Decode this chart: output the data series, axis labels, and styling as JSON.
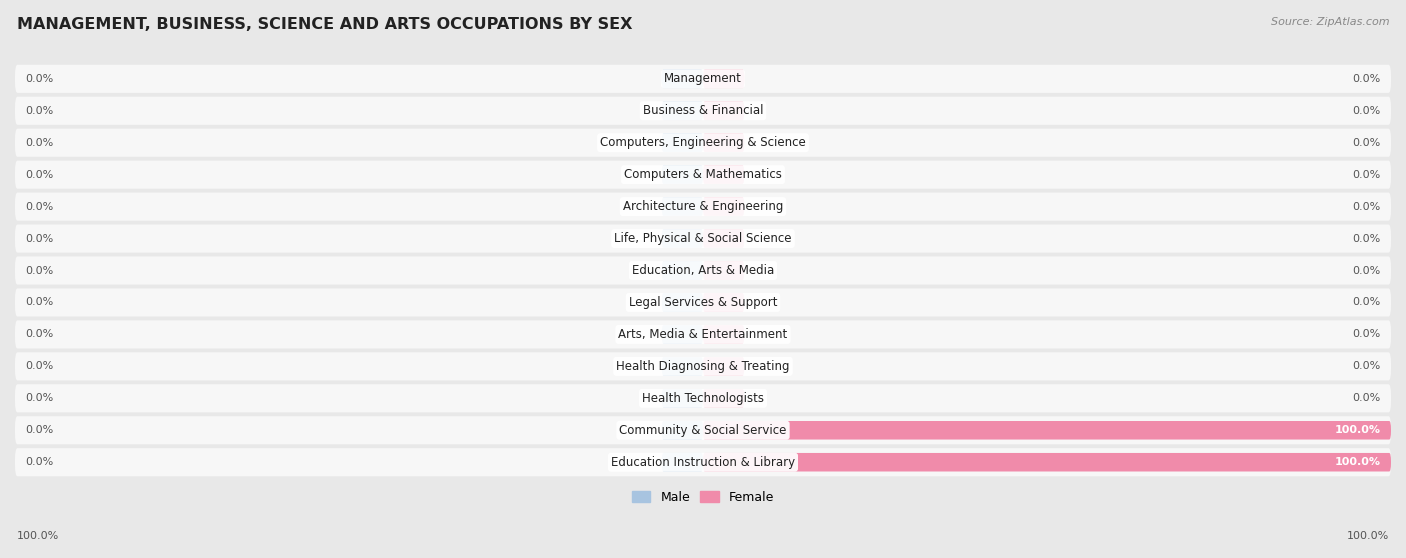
{
  "title": "MANAGEMENT, BUSINESS, SCIENCE AND ARTS OCCUPATIONS BY SEX",
  "source": "Source: ZipAtlas.com",
  "categories": [
    "Management",
    "Business & Financial",
    "Computers, Engineering & Science",
    "Computers & Mathematics",
    "Architecture & Engineering",
    "Life, Physical & Social Science",
    "Education, Arts & Media",
    "Legal Services & Support",
    "Arts, Media & Entertainment",
    "Health Diagnosing & Treating",
    "Health Technologists",
    "Community & Social Service",
    "Education Instruction & Library"
  ],
  "male_values": [
    0.0,
    0.0,
    0.0,
    0.0,
    0.0,
    0.0,
    0.0,
    0.0,
    0.0,
    0.0,
    0.0,
    0.0,
    0.0
  ],
  "female_values": [
    0.0,
    0.0,
    0.0,
    0.0,
    0.0,
    0.0,
    0.0,
    0.0,
    0.0,
    0.0,
    0.0,
    100.0,
    100.0
  ],
  "male_color": "#a8c4e0",
  "female_color": "#f08baa",
  "background_color": "#e8e8e8",
  "row_bg_color": "#f7f7f7",
  "row_separator_color": "#d8d8d8",
  "title_fontsize": 11.5,
  "label_fontsize": 8.5,
  "value_fontsize": 8,
  "legend_fontsize": 9,
  "source_fontsize": 8,
  "bar_height": 0.58,
  "stub_size": 6.0,
  "xlim": 100
}
